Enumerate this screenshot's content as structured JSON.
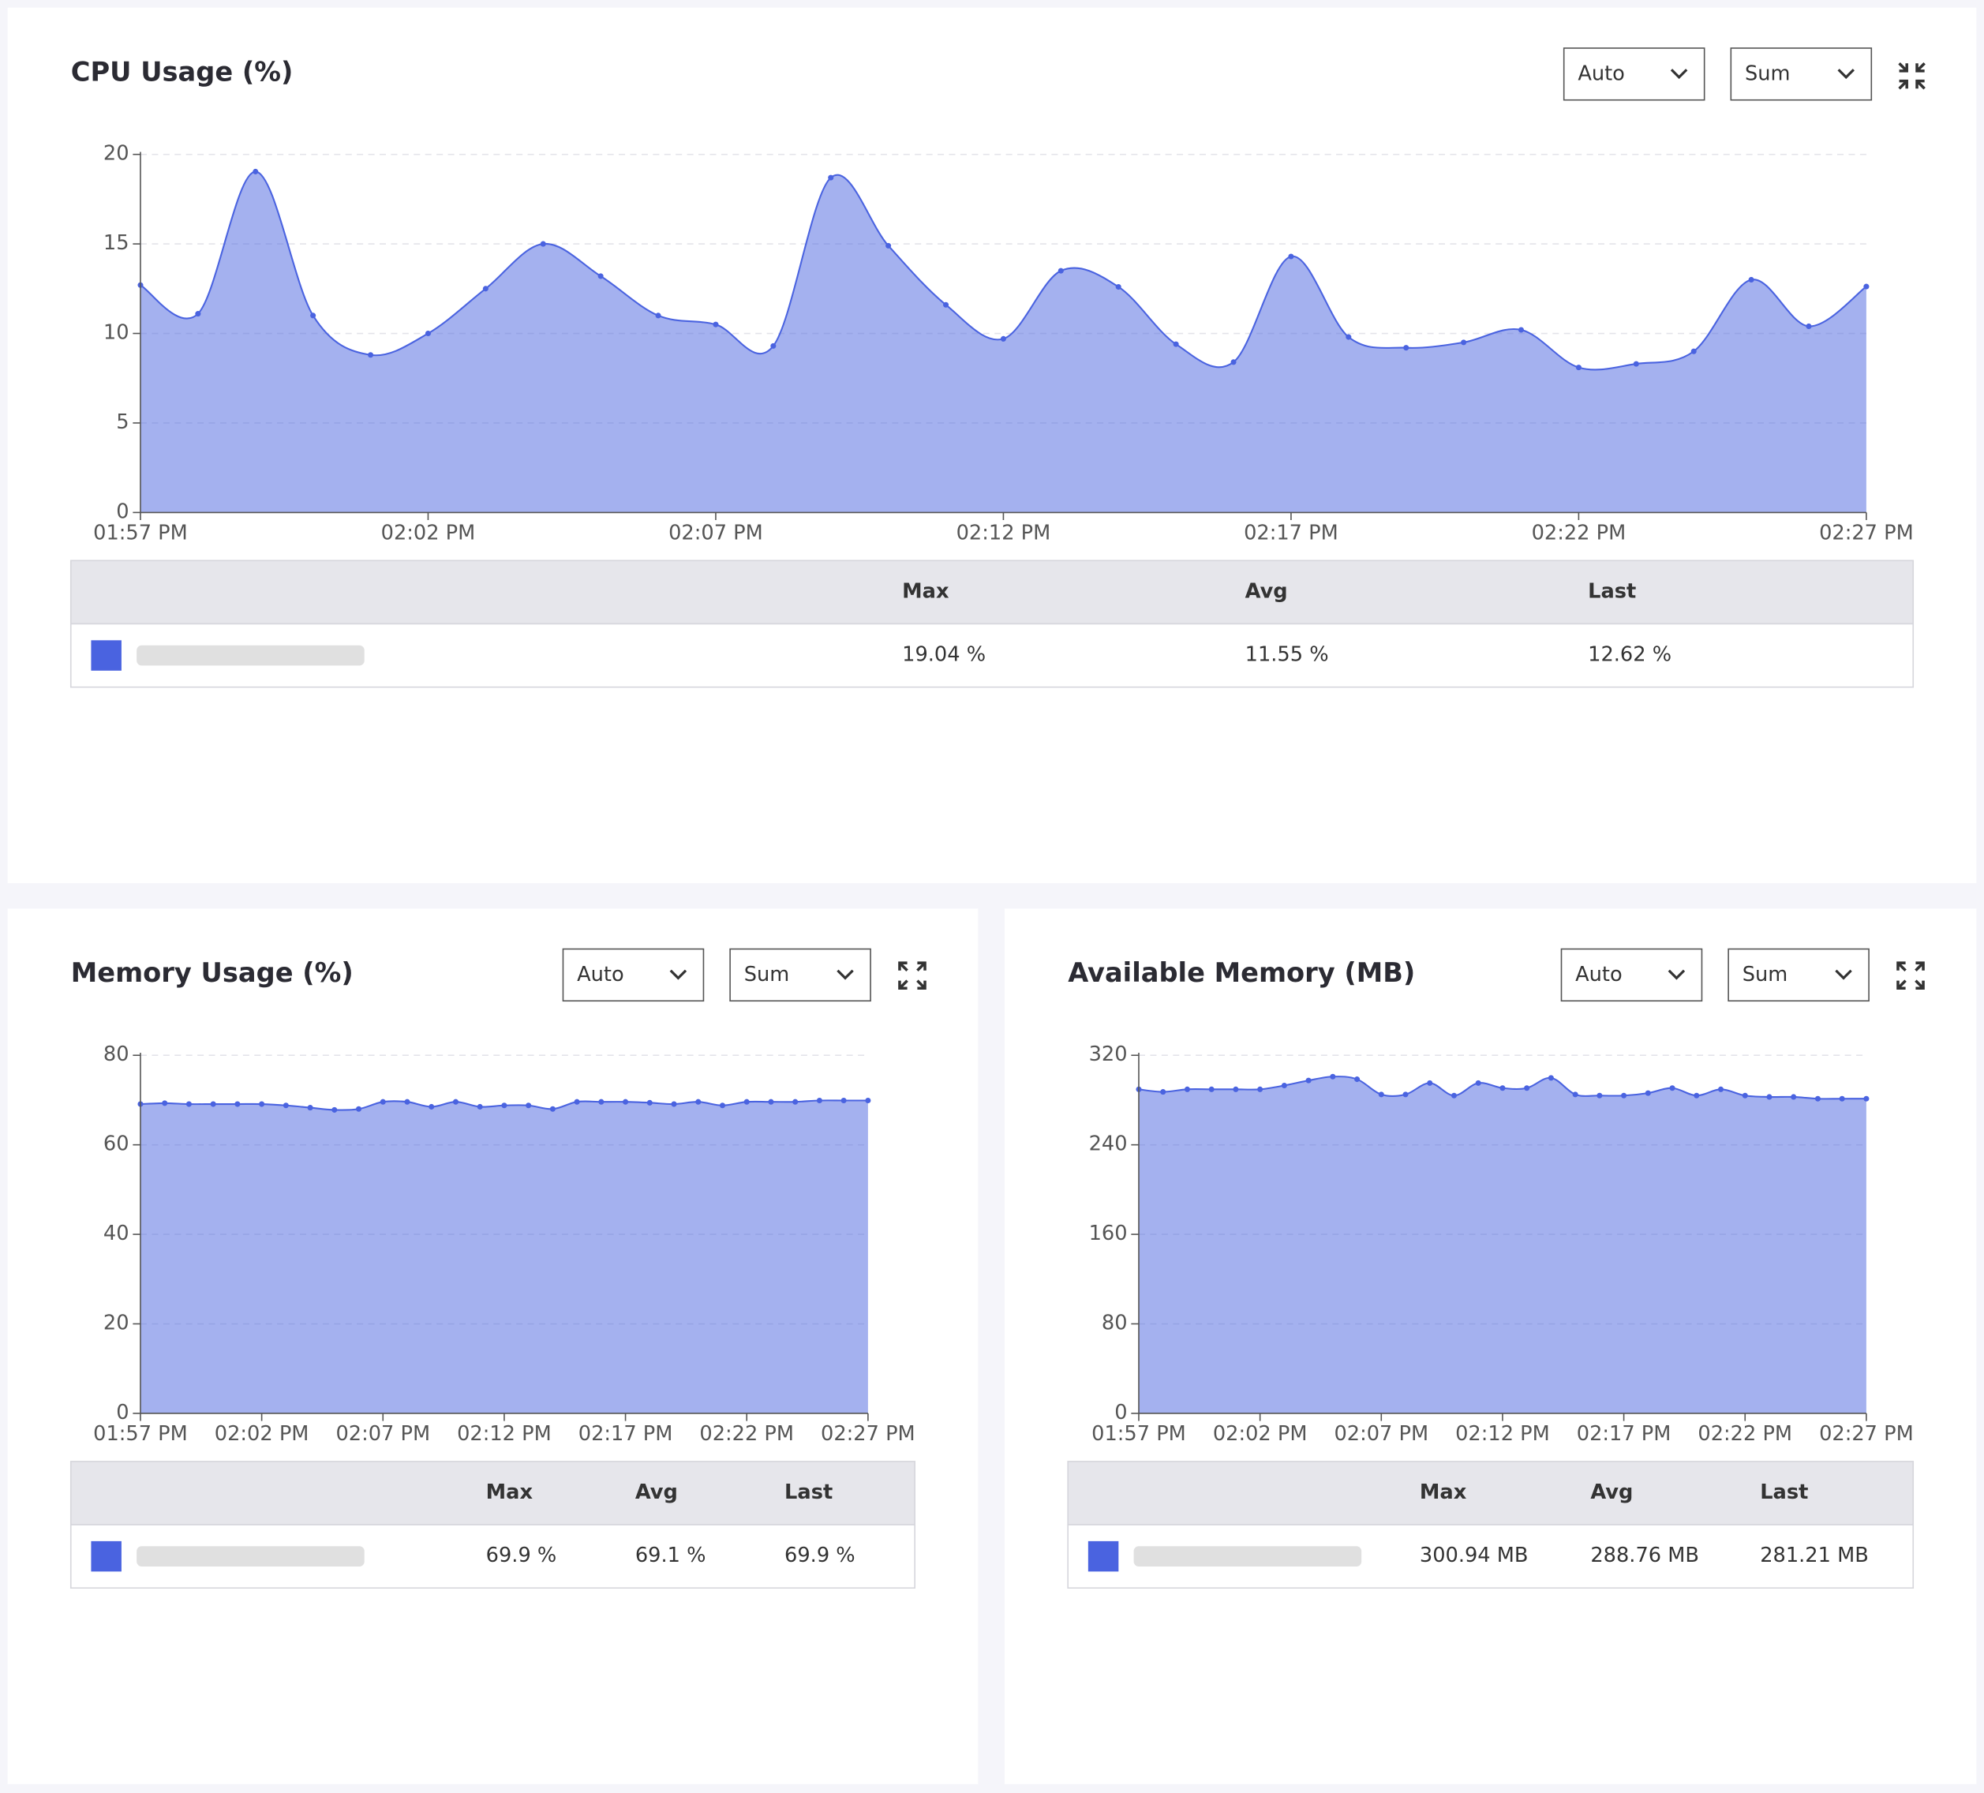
{
  "chart_data": [
    {
      "type": "area",
      "title": "CPU Usage (%)",
      "controls": [
        "Auto",
        "Sum"
      ],
      "categories": [
        "01:57 PM",
        null,
        null,
        null,
        null,
        "02:02 PM",
        null,
        null,
        null,
        null,
        "02:07 PM",
        null,
        null,
        null,
        null,
        "02:12 PM",
        null,
        null,
        null,
        null,
        "02:17 PM",
        null,
        null,
        null,
        null,
        "02:22 PM",
        null,
        null,
        null,
        null,
        "02:27 PM"
      ],
      "series": [
        {
          "color": "#4a63e0",
          "values": [
            12.7,
            11.1,
            19.04,
            11.0,
            8.8,
            10.0,
            12.5,
            15.0,
            13.2,
            11.0,
            10.5,
            9.3,
            18.7,
            14.9,
            11.6,
            9.7,
            13.5,
            12.6,
            9.4,
            8.4,
            14.3,
            9.8,
            9.2,
            9.5,
            10.2,
            8.1,
            8.3,
            9.0,
            13.0,
            10.4,
            12.62
          ]
        }
      ],
      "ylim": [
        0,
        20
      ],
      "yticks": [
        0,
        5,
        10,
        15,
        20
      ],
      "grid": true,
      "table": {
        "headers": [
          "Max",
          "Avg",
          "Last"
        ],
        "rows": [
          [
            "19.04 %",
            "11.55 %",
            "12.62 %"
          ]
        ]
      }
    },
    {
      "type": "area",
      "title": "Memory Usage (%)",
      "controls": [
        "Auto",
        "Sum"
      ],
      "categories": [
        "01:57 PM",
        null,
        null,
        null,
        null,
        "02:02 PM",
        null,
        null,
        null,
        null,
        "02:07 PM",
        null,
        null,
        null,
        null,
        "02:12 PM",
        null,
        null,
        null,
        null,
        "02:17 PM",
        null,
        null,
        null,
        null,
        "02:22 PM",
        null,
        null,
        null,
        null,
        "02:27 PM"
      ],
      "series": [
        {
          "color": "#4a63e0",
          "values": [
            69.1,
            69.3,
            69.1,
            69.1,
            69.1,
            69.1,
            68.8,
            68.3,
            67.8,
            68.0,
            69.6,
            69.6,
            68.5,
            69.6,
            68.5,
            68.8,
            68.8,
            68.0,
            69.6,
            69.6,
            69.6,
            69.4,
            69.1,
            69.6,
            68.8,
            69.6,
            69.6,
            69.6,
            69.9,
            69.9,
            69.9
          ]
        }
      ],
      "ylim": [
        0,
        80
      ],
      "yticks": [
        0,
        20,
        40,
        60,
        80
      ],
      "grid": true,
      "table": {
        "headers": [
          "Max",
          "Avg",
          "Last"
        ],
        "rows": [
          [
            "69.9 %",
            "69.1 %",
            "69.9 %"
          ]
        ]
      }
    },
    {
      "type": "area",
      "title": "Available Memory (MB)",
      "controls": [
        "Auto",
        "Sum"
      ],
      "categories": [
        "01:57 PM",
        null,
        null,
        null,
        null,
        "02:02 PM",
        null,
        null,
        null,
        null,
        "02:07 PM",
        null,
        null,
        null,
        null,
        "02:12 PM",
        null,
        null,
        null,
        null,
        "02:17 PM",
        null,
        null,
        null,
        null,
        "02:22 PM",
        null,
        null,
        null,
        null,
        "02:27 PM"
      ],
      "series": [
        {
          "color": "#4a63e0",
          "values": [
            289.6,
            287.3,
            289.6,
            289.6,
            289.6,
            289.6,
            293.0,
            297.5,
            300.94,
            298.6,
            285.0,
            285.0,
            295.2,
            284.0,
            295.2,
            290.7,
            290.7,
            299.8,
            285.0,
            284.0,
            284.0,
            286.2,
            290.7,
            284.0,
            289.6,
            284.0,
            282.8,
            282.8,
            281.2,
            281.2,
            281.21
          ]
        }
      ],
      "ylim": [
        0,
        320
      ],
      "yticks": [
        0,
        80,
        160,
        240,
        320
      ],
      "grid": true,
      "table": {
        "headers": [
          "Max",
          "Avg",
          "Last"
        ],
        "rows": [
          [
            "300.94 MB",
            "288.76 MB",
            "281.21 MB"
          ]
        ]
      }
    }
  ]
}
